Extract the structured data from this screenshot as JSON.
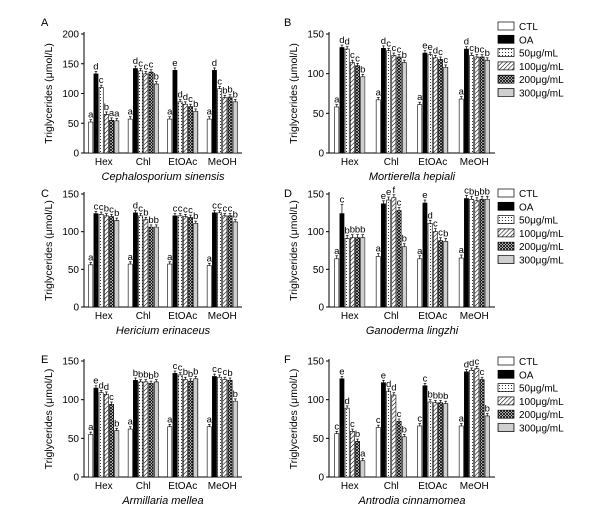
{
  "legend": {
    "entries": [
      "CTL",
      "OA",
      "50μg/mL",
      "100μg/mL",
      "200μg/mL",
      "300μg/mL"
    ],
    "fills": [
      "white",
      "black",
      "dots",
      "hatch",
      "crosshatch",
      "dotsdense"
    ]
  },
  "chart_data": [
    {
      "type": "bar",
      "panel": "A",
      "title": "Cephalosporium sinensis",
      "xlabel": "",
      "ylabel": "Triglycerides (μmol/L)",
      "ylim": [
        0,
        200
      ],
      "yticks": [
        0,
        50,
        100,
        150,
        200
      ],
      "categories": [
        "Hex",
        "Chl",
        "EtOAc",
        "MeOH"
      ],
      "series": [
        {
          "name": "CTL",
          "values": [
            52,
            57,
            57,
            57
          ],
          "errors": [
            4,
            4,
            4,
            4
          ],
          "labels": [
            "a",
            "a",
            "a",
            "a"
          ]
        },
        {
          "name": "OA",
          "values": [
            133,
            142,
            139,
            139
          ],
          "errors": [
            4,
            4,
            4,
            4
          ],
          "labels": [
            "d",
            "d",
            "e",
            "d"
          ]
        },
        {
          "name": "50μg/mL",
          "values": [
            110,
            138,
            86,
            108
          ],
          "errors": [
            4,
            4,
            4,
            4
          ],
          "labels": [
            "c",
            "c",
            "d",
            "c"
          ]
        },
        {
          "name": "100μg/mL",
          "values": [
            65,
            133,
            82,
            93
          ],
          "errors": [
            4,
            4,
            4,
            4
          ],
          "labels": [
            "b",
            "c",
            "d",
            "b"
          ]
        },
        {
          "name": "200μg/mL",
          "values": [
            55,
            136,
            78,
            94
          ],
          "errors": [
            4,
            4,
            4,
            4
          ],
          "labels": [
            "a",
            "c",
            "c",
            "b"
          ]
        },
        {
          "name": "300μg/mL",
          "values": [
            54,
            116,
            70,
            86
          ],
          "errors": [
            4,
            4,
            4,
            4
          ],
          "labels": [
            "a",
            "b",
            "b",
            "b"
          ]
        }
      ]
    },
    {
      "type": "bar",
      "panel": "B",
      "title": "Mortierella hepiali",
      "xlabel": "",
      "ylabel": "Triglycerides (μmol/L)",
      "ylim": [
        0,
        150
      ],
      "yticks": [
        0,
        50,
        100,
        150
      ],
      "categories": [
        "Hex",
        "Chl",
        "EtOAc",
        "MeOH"
      ],
      "series": [
        {
          "name": "CTL",
          "values": [
            58,
            67,
            61,
            68
          ],
          "errors": [
            3,
            3,
            3,
            3
          ],
          "labels": [
            "a",
            "a",
            "a",
            "a"
          ]
        },
        {
          "name": "OA",
          "values": [
            133,
            132,
            126,
            131
          ],
          "errors": [
            3,
            3,
            3,
            3
          ],
          "labels": [
            "d",
            "d",
            "e",
            "d"
          ]
        },
        {
          "name": "50μg/mL",
          "values": [
            131,
            129,
            124,
            123
          ],
          "errors": [
            3,
            3,
            3,
            3
          ],
          "labels": [
            "d",
            "c",
            "e",
            "c"
          ]
        },
        {
          "name": "100μg/mL",
          "values": [
            114,
            123,
            120,
            121
          ],
          "errors": [
            3,
            3,
            3,
            3
          ],
          "labels": [
            "c",
            "c",
            "d",
            "b"
          ]
        },
        {
          "name": "200μg/mL",
          "values": [
            110,
            121,
            118,
            121
          ],
          "errors": [
            3,
            3,
            3,
            3
          ],
          "labels": [
            "c",
            "c",
            "c",
            "c"
          ]
        },
        {
          "name": "300μg/mL",
          "values": [
            96,
            114,
            108,
            117
          ],
          "errors": [
            3,
            3,
            3,
            3
          ],
          "labels": [
            "b",
            "b",
            "c",
            "b"
          ]
        }
      ]
    },
    {
      "type": "bar",
      "panel": "C",
      "title": "Hericium erinaceus",
      "xlabel": "",
      "ylabel": "Triglycerides (μmol/L)",
      "ylim": [
        0,
        150
      ],
      "yticks": [
        0,
        50,
        100,
        150
      ],
      "categories": [
        "Hex",
        "Chl",
        "EtOAc",
        "MeOH"
      ],
      "series": [
        {
          "name": "CTL",
          "values": [
            56,
            57,
            57,
            55
          ],
          "errors": [
            3,
            3,
            3,
            3
          ],
          "labels": [
            "a",
            "a",
            "a",
            "a"
          ]
        },
        {
          "name": "OA",
          "values": [
            124,
            125,
            121,
            125
          ],
          "errors": [
            3,
            3,
            3,
            3
          ],
          "labels": [
            "c",
            "d",
            "c",
            "c"
          ]
        },
        {
          "name": "50μg/mL",
          "values": [
            123,
            121,
            121,
            125
          ],
          "errors": [
            3,
            3,
            3,
            3
          ],
          "labels": [
            "c",
            "c",
            "c",
            "c"
          ]
        },
        {
          "name": "100μg/mL",
          "values": [
            121,
            116,
            120,
            121
          ],
          "errors": [
            3,
            3,
            3,
            3
          ],
          "labels": [
            "b",
            "b",
            "c",
            "c"
          ]
        },
        {
          "name": "200μg/mL",
          "values": [
            120,
            106,
            119,
            121
          ],
          "errors": [
            3,
            3,
            3,
            3
          ],
          "labels": [
            "c",
            "b",
            "c",
            "c"
          ]
        },
        {
          "name": "300μg/mL",
          "values": [
            115,
            106,
            111,
            113
          ],
          "errors": [
            3,
            3,
            3,
            3
          ],
          "labels": [
            "b",
            "b",
            "b",
            "b"
          ]
        }
      ]
    },
    {
      "type": "bar",
      "panel": "D",
      "title": "Ganoderma lingzhi",
      "xlabel": "",
      "ylabel": "Triglycerides (μmol/L)",
      "ylim": [
        0,
        150
      ],
      "yticks": [
        0,
        50,
        100,
        150
      ],
      "categories": [
        "Hex",
        "Chl",
        "EtOAc",
        "MeOH"
      ],
      "series": [
        {
          "name": "CTL",
          "values": [
            64,
            67,
            64,
            65
          ],
          "errors": [
            4,
            4,
            4,
            4
          ],
          "labels": [
            "a",
            "a",
            "a",
            "a"
          ]
        },
        {
          "name": "OA",
          "values": [
            124,
            137,
            138,
            144
          ],
          "errors": [
            12,
            4,
            4,
            4
          ],
          "labels": [
            "c",
            "e",
            "e",
            "c"
          ]
        },
        {
          "name": "50μg/mL",
          "values": [
            91,
            142,
            111,
            143
          ],
          "errors": [
            4,
            4,
            4,
            4
          ],
          "labels": [
            "b",
            "e",
            "d",
            "b"
          ]
        },
        {
          "name": "100μg/mL",
          "values": [
            92,
            145,
            100,
            141
          ],
          "errors": [
            4,
            4,
            4,
            4
          ],
          "labels": [
            "b",
            "f",
            "c",
            "b"
          ]
        },
        {
          "name": "200μg/mL",
          "values": [
            92,
            128,
            88,
            143
          ],
          "errors": [
            4,
            4,
            4,
            4
          ],
          "labels": [
            "b",
            "c",
            "c",
            "b"
          ]
        },
        {
          "name": "300μg/mL",
          "values": [
            92,
            80,
            87,
            143
          ],
          "errors": [
            4,
            4,
            4,
            4
          ],
          "labels": [
            "b",
            "b",
            "b",
            "b"
          ]
        }
      ]
    },
    {
      "type": "bar",
      "panel": "E",
      "title": "Armillaria mellea",
      "xlabel": "",
      "ylabel": "Triglycerides (μmol/L)",
      "ylim": [
        0,
        150
      ],
      "yticks": [
        0,
        50,
        100,
        150
      ],
      "categories": [
        "Hex",
        "Chl",
        "EtOAc",
        "MeOH"
      ],
      "series": [
        {
          "name": "CTL",
          "values": [
            55,
            62,
            65,
            65
          ],
          "errors": [
            3,
            3,
            3,
            3
          ],
          "labels": [
            "a",
            "a",
            "a",
            "a"
          ]
        },
        {
          "name": "OA",
          "values": [
            115,
            125,
            134,
            130
          ],
          "errors": [
            3,
            3,
            3,
            3
          ],
          "labels": [
            "e",
            "b",
            "c",
            "c"
          ]
        },
        {
          "name": "50μg/mL",
          "values": [
            109,
            123,
            132,
            129
          ],
          "errors": [
            3,
            3,
            3,
            3
          ],
          "labels": [
            "d",
            "b",
            "c",
            "c"
          ]
        },
        {
          "name": "100μg/mL",
          "values": [
            107,
            123,
            126,
            126
          ],
          "errors": [
            3,
            3,
            3,
            3
          ],
          "labels": [
            "d",
            "b",
            "b",
            "c"
          ]
        },
        {
          "name": "200μg/mL",
          "values": [
            94,
            121,
            124,
            125
          ],
          "errors": [
            3,
            3,
            3,
            3
          ],
          "labels": [
            "c",
            "b",
            "b",
            "b"
          ]
        },
        {
          "name": "300μg/mL",
          "values": [
            60,
            123,
            127,
            98
          ],
          "errors": [
            3,
            3,
            3,
            3
          ],
          "labels": [
            "b",
            "b",
            "b",
            "b"
          ]
        }
      ]
    },
    {
      "type": "bar",
      "panel": "F",
      "title": "Antrodia cinnamomea",
      "xlabel": "",
      "ylabel": "Triglycerides (μmol/L)",
      "ylim": [
        0,
        150
      ],
      "yticks": [
        0,
        50,
        100,
        150
      ],
      "categories": [
        "Hex",
        "Chl",
        "EtOAc",
        "MeOH"
      ],
      "series": [
        {
          "name": "CTL",
          "values": [
            56,
            64,
            66,
            66
          ],
          "errors": [
            3,
            3,
            3,
            3
          ],
          "labels": [
            "c",
            "c",
            "c",
            "a"
          ]
        },
        {
          "name": "OA",
          "values": [
            127,
            122,
            118,
            136
          ],
          "errors": [
            3,
            3,
            3,
            3
          ],
          "labels": [
            "e",
            "e",
            "c",
            "d"
          ]
        },
        {
          "name": "50μg/mL",
          "values": [
            89,
            111,
            97,
            138
          ],
          "errors": [
            3,
            3,
            3,
            3
          ],
          "labels": [
            "d",
            "d",
            "b",
            "d"
          ]
        },
        {
          "name": "100μg/mL",
          "values": [
            59,
            106,
            96,
            140
          ],
          "errors": [
            3,
            3,
            3,
            3
          ],
          "labels": [
            "c",
            "d",
            "b",
            "c"
          ]
        },
        {
          "name": "200μg/mL",
          "values": [
            46,
            72,
            96,
            126
          ],
          "errors": [
            3,
            3,
            3,
            3
          ],
          "labels": [
            "b",
            "c",
            "b",
            "c"
          ]
        },
        {
          "name": "300μg/mL",
          "values": [
            21,
            52,
            95,
            79
          ],
          "errors": [
            3,
            3,
            3,
            3
          ],
          "labels": [
            "a",
            "b",
            "b",
            "b"
          ]
        }
      ]
    }
  ]
}
